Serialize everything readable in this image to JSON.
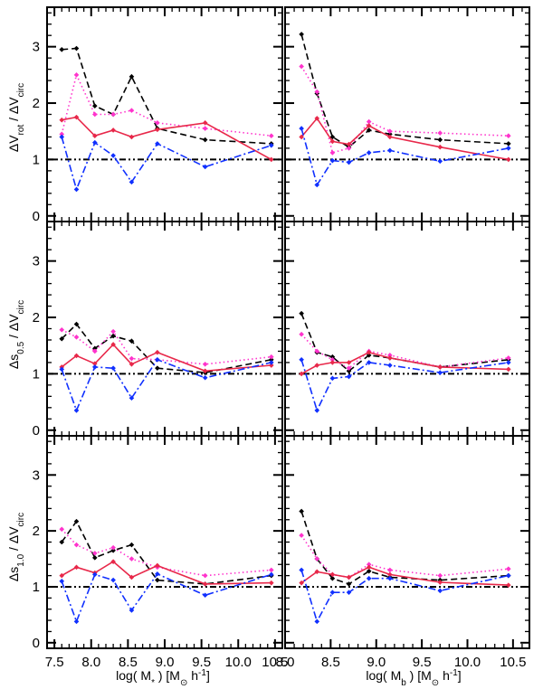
{
  "figure": {
    "ylabels": [
      "ΔV_rot / ΔV_circ",
      "Δs_0.5 / ΔV_circ",
      "Δs_1.0 / ΔV_circ"
    ],
    "xlabels": [
      "log( M_* ) [M_⊙ h^-1]",
      "log( M_b ) [M_⊙ h^-1]"
    ]
  },
  "chart_data": {
    "type": "line",
    "layout": "3x2 grid of panels, shared axes",
    "yrange": [
      -0.1,
      3.7
    ],
    "yticks": [
      0,
      1,
      2,
      3
    ],
    "reference_line": {
      "y": 1,
      "style": "dash-dot-dot",
      "color": "#000000"
    },
    "columns": [
      {
        "xlabel": "log( M_* ) [M_⊙ h^-1]",
        "xrange": [
          7.4,
          10.6
        ],
        "xticks": [
          7.5,
          8.0,
          8.5,
          9.0,
          9.5,
          10.0,
          10.5
        ]
      },
      {
        "xlabel": "log( M_b ) [M_⊙ h^-1]",
        "xrange": [
          8.0,
          10.68
        ],
        "xticks": [
          8.0,
          8.5,
          9.0,
          9.5,
          10.0,
          10.5
        ]
      }
    ],
    "series_styles": {
      "black": {
        "color": "#000000",
        "dash": "dashed"
      },
      "magenta": {
        "color": "#ff33cc",
        "dash": "dotted"
      },
      "red": {
        "color": "#e8284a",
        "dash": "solid"
      },
      "blue": {
        "color": "#1030ff",
        "dash": "dash-dot"
      }
    },
    "panels": [
      {
        "row": 0,
        "col": 0,
        "ylabel": "ΔV_rot / ΔV_circ",
        "x": [
          7.6,
          7.8,
          8.05,
          8.3,
          8.55,
          8.9,
          9.55,
          10.45
        ],
        "series": [
          {
            "style": "black",
            "values": [
              2.95,
              2.97,
              1.95,
              1.8,
              2.47,
              1.55,
              1.35,
              1.28
            ]
          },
          {
            "style": "magenta",
            "values": [
              1.45,
              2.5,
              1.8,
              1.8,
              1.87,
              1.65,
              1.55,
              1.42
            ]
          },
          {
            "style": "red",
            "values": [
              1.7,
              1.75,
              1.42,
              1.52,
              1.4,
              1.53,
              1.65,
              1.0
            ]
          },
          {
            "style": "blue",
            "values": [
              1.4,
              0.47,
              1.3,
              1.07,
              0.6,
              1.28,
              0.87,
              1.25
            ]
          }
        ]
      },
      {
        "row": 0,
        "col": 1,
        "ylabel": "",
        "x": [
          8.18,
          8.35,
          8.52,
          8.7,
          8.92,
          9.15,
          9.7,
          10.45
        ],
        "series": [
          {
            "style": "black",
            "values": [
              3.22,
              2.17,
              1.4,
              1.22,
              1.52,
              1.45,
              1.35,
              1.28
            ]
          },
          {
            "style": "magenta",
            "values": [
              2.65,
              2.2,
              1.12,
              1.2,
              1.67,
              1.5,
              1.47,
              1.42
            ]
          },
          {
            "style": "red",
            "values": [
              1.4,
              1.73,
              1.32,
              1.27,
              1.6,
              1.4,
              1.22,
              1.0
            ]
          },
          {
            "style": "blue",
            "values": [
              1.55,
              0.55,
              0.98,
              0.95,
              1.12,
              1.16,
              0.97,
              1.2
            ]
          }
        ]
      },
      {
        "row": 1,
        "col": 0,
        "ylabel": "Δs_0.5 / ΔV_circ",
        "x": [
          7.6,
          7.8,
          8.05,
          8.3,
          8.55,
          8.9,
          9.55,
          10.45
        ],
        "series": [
          {
            "style": "black",
            "values": [
              1.62,
              1.88,
              1.45,
              1.67,
              1.58,
              1.1,
              1.02,
              1.25
            ]
          },
          {
            "style": "magenta",
            "values": [
              1.78,
              1.65,
              1.4,
              1.75,
              1.27,
              1.25,
              1.17,
              1.3
            ]
          },
          {
            "style": "red",
            "values": [
              1.12,
              1.32,
              1.18,
              1.52,
              1.17,
              1.38,
              1.05,
              1.15
            ]
          },
          {
            "style": "blue",
            "values": [
              1.08,
              0.35,
              1.12,
              1.1,
              0.57,
              1.25,
              0.93,
              1.2
            ]
          }
        ]
      },
      {
        "row": 1,
        "col": 1,
        "ylabel": "",
        "x": [
          8.18,
          8.35,
          8.52,
          8.7,
          8.92,
          9.15,
          9.7,
          10.45
        ],
        "series": [
          {
            "style": "black",
            "values": [
              2.07,
              1.38,
              1.3,
              1.05,
              1.33,
              1.28,
              1.12,
              1.25
            ]
          },
          {
            "style": "magenta",
            "values": [
              1.7,
              1.4,
              1.25,
              1.1,
              1.4,
              1.33,
              1.12,
              1.28
            ]
          },
          {
            "style": "red",
            "values": [
              1.0,
              1.15,
              1.2,
              1.2,
              1.38,
              1.28,
              1.12,
              1.08
            ]
          },
          {
            "style": "blue",
            "values": [
              1.25,
              0.35,
              0.92,
              0.95,
              1.2,
              1.15,
              1.02,
              1.2
            ]
          }
        ]
      },
      {
        "row": 2,
        "col": 0,
        "ylabel": "Δs_1.0 / ΔV_circ",
        "x": [
          7.6,
          7.8,
          8.05,
          8.3,
          8.55,
          8.9,
          9.55,
          10.45
        ],
        "series": [
          {
            "style": "black",
            "values": [
              1.8,
              2.17,
              1.52,
              1.65,
              1.75,
              1.12,
              1.05,
              1.2
            ]
          },
          {
            "style": "magenta",
            "values": [
              2.03,
              1.75,
              1.6,
              1.7,
              1.5,
              1.35,
              1.2,
              1.3
            ]
          },
          {
            "style": "red",
            "values": [
              1.2,
              1.35,
              1.25,
              1.45,
              1.17,
              1.38,
              1.05,
              1.07
            ]
          },
          {
            "style": "blue",
            "values": [
              1.1,
              0.38,
              1.22,
              1.12,
              0.58,
              1.23,
              0.85,
              1.22
            ]
          }
        ]
      },
      {
        "row": 2,
        "col": 1,
        "ylabel": "",
        "x": [
          8.18,
          8.35,
          8.52,
          8.7,
          8.92,
          9.15,
          9.7,
          10.45
        ],
        "series": [
          {
            "style": "black",
            "values": [
              2.35,
              1.5,
              1.15,
              1.05,
              1.28,
              1.17,
              1.12,
              1.2
            ]
          },
          {
            "style": "magenta",
            "values": [
              1.92,
              1.5,
              1.22,
              1.17,
              1.4,
              1.3,
              1.2,
              1.32
            ]
          },
          {
            "style": "red",
            "values": [
              1.07,
              1.27,
              1.22,
              1.17,
              1.35,
              1.22,
              1.08,
              1.03
            ]
          },
          {
            "style": "blue",
            "values": [
              1.3,
              0.38,
              0.9,
              0.9,
              1.15,
              1.15,
              0.93,
              1.2
            ]
          }
        ]
      }
    ]
  }
}
